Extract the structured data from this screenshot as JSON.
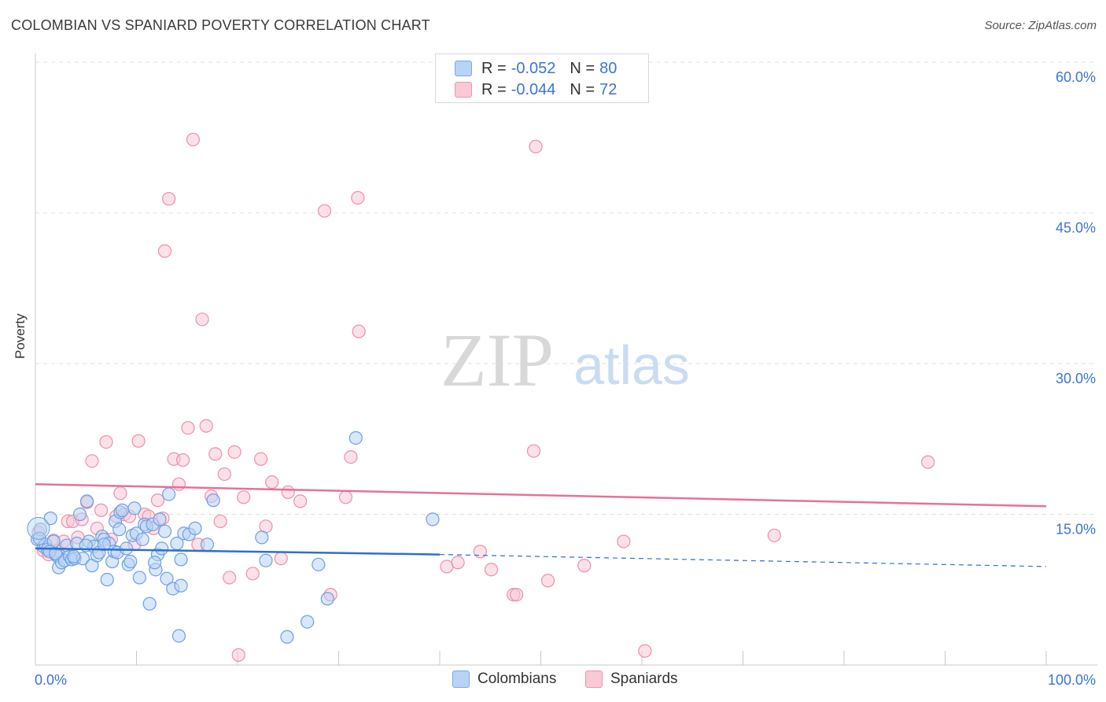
{
  "header": {
    "title": "COLOMBIAN VS SPANIARD POVERTY CORRELATION CHART",
    "source": "Source: ZipAtlas.com"
  },
  "legend": {
    "r_label": "R =",
    "n_label": "N =",
    "rows": [
      {
        "r": "-0.052",
        "n": "80"
      },
      {
        "r": "-0.044",
        "n": "72"
      }
    ],
    "bottom": [
      "Colombians",
      "Spaniards"
    ]
  },
  "watermark": {
    "zip": "ZIP",
    "atlas": "atlas"
  },
  "colors": {
    "blue_fill": "#b8d4f5",
    "blue_stroke": "#6f9fe0",
    "blue_line": "#2e6fd0",
    "pink_fill": "#f9c9d6",
    "pink_stroke": "#ec8fab",
    "pink_line": "#e8709a",
    "axis_text": "#3b74d4"
  },
  "chart_data": {
    "type": "scatter",
    "title": "COLOMBIAN VS SPANIARD POVERTY CORRELATION CHART",
    "xlabel": "",
    "ylabel": "Poverty",
    "xlim": [
      0,
      100
    ],
    "ylim": [
      0,
      60
    ],
    "x_tick_labels": [
      "0.0%",
      "100.0%"
    ],
    "y_tick_labels": [
      "15.0%",
      "30.0%",
      "45.0%",
      "60.0%"
    ],
    "y_ticks": [
      15,
      30,
      45,
      60
    ],
    "grid": true,
    "series": [
      {
        "name": "Colombians",
        "r": -0.052,
        "n": 80,
        "trend": {
          "x0": 0,
          "y0": 11.6,
          "x1": 40,
          "y1": 11.0,
          "dashed_to": 100,
          "dashed_y": 9.8
        },
        "points": [
          [
            0.2,
            12.5
          ],
          [
            0.5,
            13.5
          ],
          [
            0.8,
            11.8
          ],
          [
            1.0,
            12.0
          ],
          [
            1.2,
            11.5
          ],
          [
            1.5,
            14.6
          ],
          [
            1.8,
            12.3
          ],
          [
            2.0,
            11.0
          ],
          [
            2.2,
            10.8
          ],
          [
            2.3,
            9.7
          ],
          [
            2.6,
            10.2
          ],
          [
            2.9,
            10.4
          ],
          [
            3.1,
            11.9
          ],
          [
            3.4,
            10.8
          ],
          [
            3.6,
            10.5
          ],
          [
            3.9,
            10.6
          ],
          [
            4.1,
            12.1
          ],
          [
            4.4,
            15.0
          ],
          [
            4.7,
            10.6
          ],
          [
            5.1,
            16.3
          ],
          [
            5.3,
            12.3
          ],
          [
            5.6,
            9.9
          ],
          [
            5.8,
            11.8
          ],
          [
            6.1,
            10.9
          ],
          [
            6.3,
            11.2
          ],
          [
            6.6,
            12.8
          ],
          [
            6.8,
            12.5
          ],
          [
            7.1,
            8.5
          ],
          [
            7.3,
            12.1
          ],
          [
            7.6,
            10.3
          ],
          [
            7.8,
            11.3
          ],
          [
            7.9,
            14.3
          ],
          [
            8.1,
            11.2
          ],
          [
            8.3,
            13.5
          ],
          [
            8.4,
            15.2
          ],
          [
            8.6,
            15.4
          ],
          [
            9.0,
            11.6
          ],
          [
            9.2,
            10.0
          ],
          [
            9.4,
            10.3
          ],
          [
            9.6,
            12.9
          ],
          [
            9.8,
            15.6
          ],
          [
            10.0,
            13.1
          ],
          [
            10.3,
            8.7
          ],
          [
            10.6,
            12.5
          ],
          [
            10.8,
            14.0
          ],
          [
            11.0,
            13.8
          ],
          [
            11.3,
            6.1
          ],
          [
            11.6,
            14.0
          ],
          [
            11.9,
            9.5
          ],
          [
            12.1,
            11.0
          ],
          [
            12.3,
            14.5
          ],
          [
            12.5,
            11.6
          ],
          [
            12.8,
            13.3
          ],
          [
            13.0,
            8.6
          ],
          [
            13.2,
            17.0
          ],
          [
            13.6,
            7.6
          ],
          [
            14.0,
            12.1
          ],
          [
            14.2,
            2.9
          ],
          [
            14.4,
            7.9
          ],
          [
            14.7,
            13.1
          ],
          [
            15.2,
            13.0
          ],
          [
            15.8,
            13.6
          ],
          [
            17.6,
            16.4
          ],
          [
            22.4,
            12.7
          ],
          [
            22.8,
            10.4
          ],
          [
            24.9,
            2.8
          ],
          [
            26.9,
            4.3
          ],
          [
            28.0,
            10.0
          ],
          [
            28.9,
            6.6
          ],
          [
            31.7,
            22.6
          ],
          [
            39.3,
            14.5
          ],
          [
            0.4,
            12.6
          ],
          [
            1.4,
            11.3
          ],
          [
            2.0,
            11.1
          ],
          [
            3.8,
            10.8
          ],
          [
            5.0,
            11.9
          ],
          [
            6.8,
            12.0
          ],
          [
            11.8,
            10.2
          ],
          [
            14.4,
            10.5
          ],
          [
            17.0,
            12.0
          ]
        ]
      },
      {
        "name": "Spaniards",
        "r": -0.044,
        "n": 72,
        "trend": {
          "x0": 0,
          "y0": 18.0,
          "x1": 100,
          "y1": 15.8
        },
        "points": [
          [
            0.3,
            13.2
          ],
          [
            0.8,
            11.4
          ],
          [
            1.3,
            11.0
          ],
          [
            1.8,
            12.4
          ],
          [
            2.2,
            11.4
          ],
          [
            2.8,
            12.3
          ],
          [
            3.2,
            14.3
          ],
          [
            3.7,
            14.3
          ],
          [
            4.2,
            12.7
          ],
          [
            4.6,
            14.5
          ],
          [
            5.1,
            16.2
          ],
          [
            5.6,
            20.3
          ],
          [
            6.1,
            13.6
          ],
          [
            6.5,
            15.4
          ],
          [
            7.0,
            22.2
          ],
          [
            7.5,
            12.5
          ],
          [
            8.0,
            14.8
          ],
          [
            8.4,
            17.1
          ],
          [
            8.8,
            15.0
          ],
          [
            9.3,
            14.8
          ],
          [
            9.8,
            12.0
          ],
          [
            10.2,
            22.3
          ],
          [
            10.8,
            15.0
          ],
          [
            11.2,
            14.8
          ],
          [
            11.7,
            13.6
          ],
          [
            12.1,
            16.4
          ],
          [
            12.6,
            14.6
          ],
          [
            12.8,
            41.2
          ],
          [
            13.2,
            46.4
          ],
          [
            13.7,
            20.5
          ],
          [
            14.2,
            18.0
          ],
          [
            14.6,
            20.4
          ],
          [
            15.1,
            23.6
          ],
          [
            15.6,
            52.3
          ],
          [
            16.1,
            12.0
          ],
          [
            16.5,
            34.4
          ],
          [
            16.9,
            23.8
          ],
          [
            17.4,
            16.8
          ],
          [
            17.8,
            21.0
          ],
          [
            18.3,
            14.3
          ],
          [
            18.7,
            19.0
          ],
          [
            19.2,
            8.7
          ],
          [
            19.7,
            21.2
          ],
          [
            20.1,
            1.0
          ],
          [
            20.6,
            16.7
          ],
          [
            21.5,
            9.1
          ],
          [
            22.3,
            20.5
          ],
          [
            22.8,
            13.8
          ],
          [
            23.4,
            18.2
          ],
          [
            24.3,
            10.6
          ],
          [
            25.0,
            17.2
          ],
          [
            26.2,
            16.3
          ],
          [
            28.6,
            45.2
          ],
          [
            29.2,
            7.0
          ],
          [
            30.7,
            16.7
          ],
          [
            31.2,
            20.7
          ],
          [
            31.9,
            46.5
          ],
          [
            32.0,
            33.2
          ],
          [
            40.7,
            9.8
          ],
          [
            41.8,
            10.2
          ],
          [
            44.0,
            11.3
          ],
          [
            45.1,
            9.5
          ],
          [
            47.3,
            7.0
          ],
          [
            47.6,
            7.0
          ],
          [
            49.3,
            21.3
          ],
          [
            49.5,
            51.6
          ],
          [
            50.7,
            8.4
          ],
          [
            54.3,
            9.9
          ],
          [
            58.2,
            12.3
          ],
          [
            60.3,
            1.4
          ],
          [
            73.1,
            12.9
          ],
          [
            88.3,
            20.2
          ]
        ]
      }
    ]
  }
}
